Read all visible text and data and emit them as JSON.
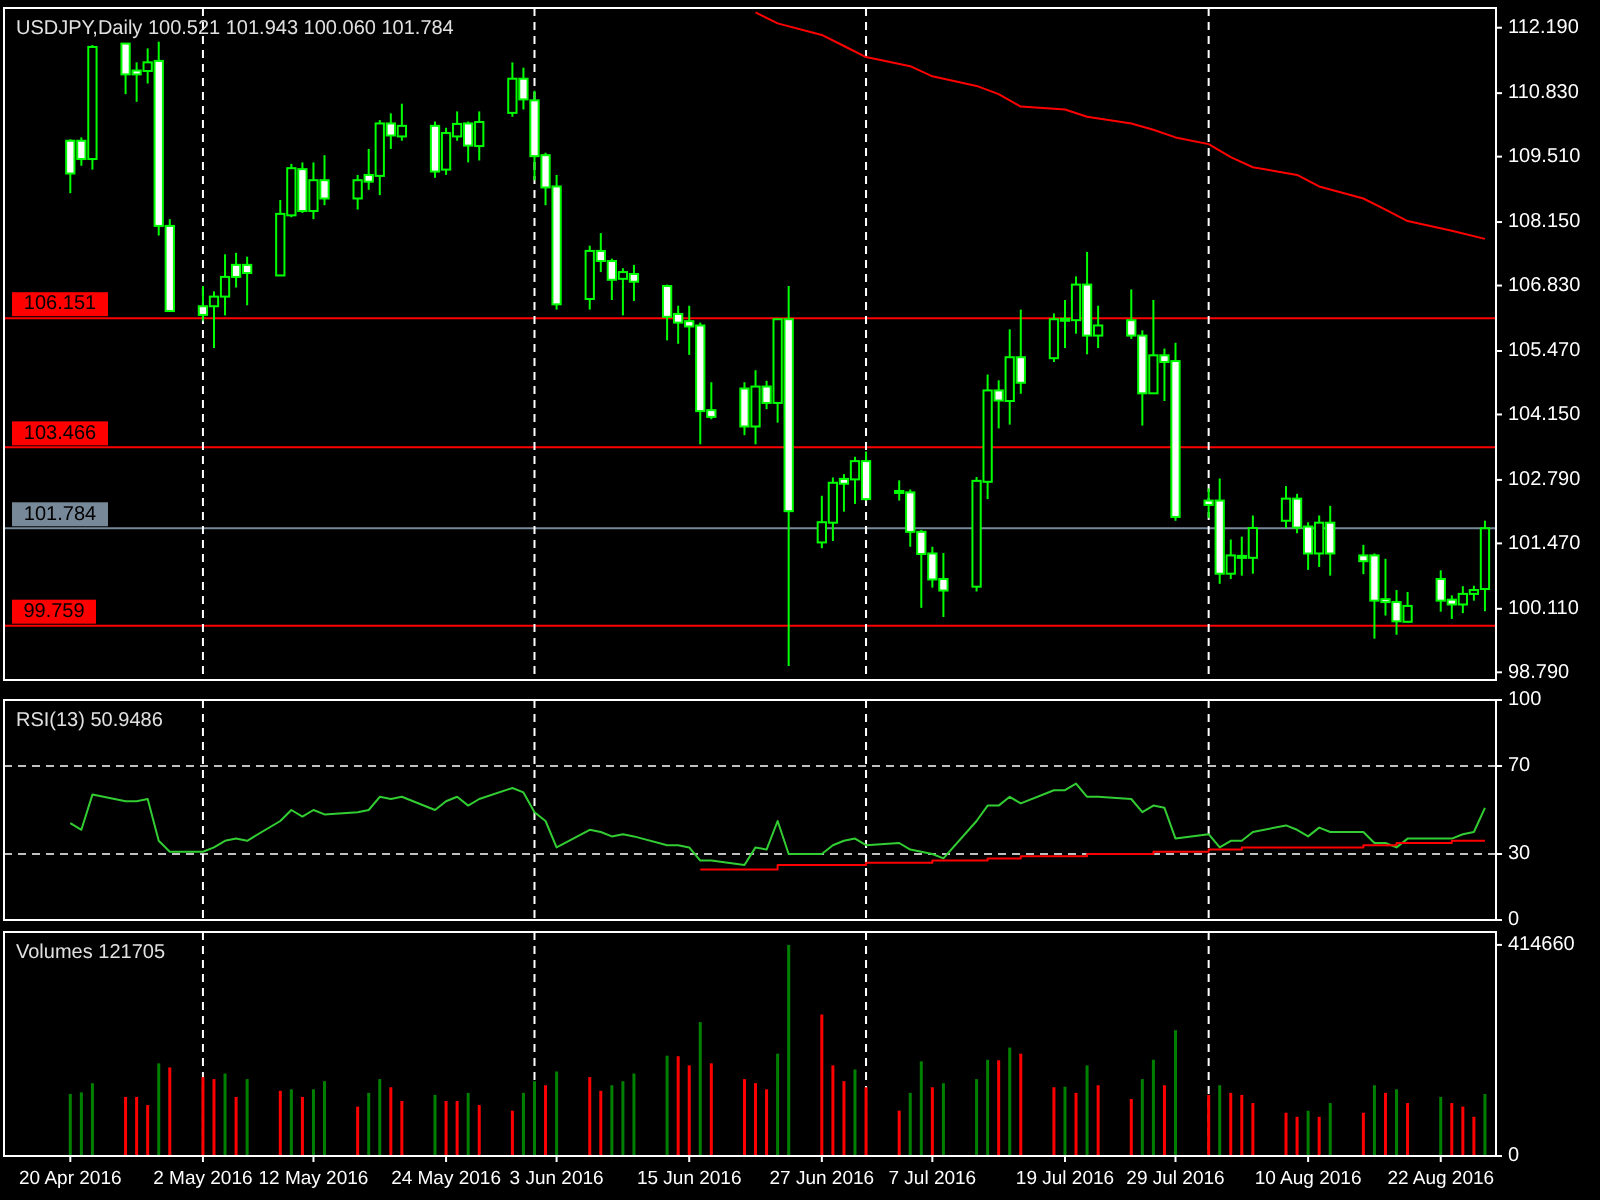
{
  "chart_data": [
    {
      "type": "candlestick",
      "title": "USDJPY,Daily 100.521 101.943 100.060 101.784",
      "color": "#00ff00",
      "x": [
        "2016-04-20",
        "2016-04-21",
        "2016-04-22",
        "2016-04-25",
        "2016-04-26",
        "2016-04-27",
        "2016-04-28",
        "2016-04-29",
        "2016-05-02",
        "2016-05-03",
        "2016-05-04",
        "2016-05-05",
        "2016-05-06",
        "2016-05-09",
        "2016-05-10",
        "2016-05-11",
        "2016-05-12",
        "2016-05-13",
        "2016-05-16",
        "2016-05-17",
        "2016-05-18",
        "2016-05-19",
        "2016-05-20",
        "2016-05-23",
        "2016-05-24",
        "2016-05-25",
        "2016-05-26",
        "2016-05-27",
        "2016-05-30",
        "2016-05-31",
        "2016-06-01",
        "2016-06-02",
        "2016-06-03",
        "2016-06-06",
        "2016-06-07",
        "2016-06-08",
        "2016-06-09",
        "2016-06-10",
        "2016-06-13",
        "2016-06-14",
        "2016-06-15",
        "2016-06-16",
        "2016-06-17",
        "2016-06-20",
        "2016-06-21",
        "2016-06-22",
        "2016-06-23",
        "2016-06-24",
        "2016-06-27",
        "2016-06-28",
        "2016-06-29",
        "2016-06-30",
        "2016-07-01",
        "2016-07-04",
        "2016-07-05",
        "2016-07-06",
        "2016-07-07",
        "2016-07-08",
        "2016-07-11",
        "2016-07-12",
        "2016-07-13",
        "2016-07-14",
        "2016-07-15",
        "2016-07-18",
        "2016-07-19",
        "2016-07-20",
        "2016-07-21",
        "2016-07-22",
        "2016-07-25",
        "2016-07-26",
        "2016-07-27",
        "2016-07-28",
        "2016-07-29",
        "2016-08-01",
        "2016-08-02",
        "2016-08-03",
        "2016-08-04",
        "2016-08-05",
        "2016-08-08",
        "2016-08-09",
        "2016-08-10",
        "2016-08-11",
        "2016-08-12",
        "2016-08-15",
        "2016-08-16",
        "2016-08-17",
        "2016-08-18",
        "2016-08-19",
        "2016-08-22",
        "2016-08-23",
        "2016-08-24",
        "2016-08-25",
        "2016-08-26"
      ],
      "ohlc": [
        [
          109.84,
          109.87,
          108.75,
          109.16
        ],
        [
          109.84,
          109.91,
          109.32,
          109.46
        ],
        [
          109.46,
          111.83,
          109.24,
          111.79
        ],
        [
          111.86,
          111.87,
          110.81,
          111.22
        ],
        [
          111.3,
          111.47,
          110.65,
          111.22
        ],
        [
          111.29,
          111.76,
          111.03,
          111.47
        ],
        [
          111.5,
          111.9,
          107.87,
          108.07
        ],
        [
          108.07,
          108.21,
          106.28,
          106.3
        ],
        [
          106.4,
          106.82,
          106.1,
          106.22
        ],
        [
          106.4,
          106.71,
          105.53,
          106.6
        ],
        [
          106.6,
          107.48,
          106.21,
          107.01
        ],
        [
          107.26,
          107.51,
          106.79,
          107.01
        ],
        [
          107.26,
          107.43,
          106.42,
          107.09
        ],
        [
          107.04,
          108.61,
          107.04,
          108.32
        ],
        [
          108.29,
          109.36,
          108.25,
          109.27
        ],
        [
          109.25,
          109.39,
          108.34,
          108.38
        ],
        [
          108.38,
          109.39,
          108.21,
          109.02
        ],
        [
          109.02,
          109.54,
          108.5,
          108.64
        ],
        [
          108.64,
          109.13,
          108.41,
          109.02
        ],
        [
          109.13,
          109.67,
          108.82,
          108.99
        ],
        [
          109.11,
          110.27,
          108.71,
          110.2
        ],
        [
          110.2,
          110.41,
          109.67,
          109.95
        ],
        [
          109.93,
          110.61,
          109.84,
          110.15
        ],
        [
          110.15,
          110.24,
          109.07,
          109.2
        ],
        [
          109.24,
          110.11,
          109.13,
          110.0
        ],
        [
          109.93,
          110.45,
          109.84,
          110.19
        ],
        [
          110.2,
          110.24,
          109.39,
          109.74
        ],
        [
          109.73,
          110.45,
          109.43,
          110.23
        ],
        [
          110.42,
          111.47,
          110.34,
          111.13
        ],
        [
          111.13,
          111.36,
          110.49,
          110.7
        ],
        [
          110.68,
          110.88,
          109.02,
          109.52
        ],
        [
          109.54,
          109.59,
          108.5,
          108.87
        ],
        [
          108.89,
          109.13,
          106.33,
          106.44
        ],
        [
          106.55,
          107.66,
          106.33,
          107.55
        ],
        [
          107.55,
          107.92,
          107.11,
          107.34
        ],
        [
          107.34,
          107.39,
          106.53,
          106.95
        ],
        [
          106.97,
          107.19,
          106.21,
          107.11
        ],
        [
          107.07,
          107.26,
          106.51,
          106.91
        ],
        [
          106.82,
          106.85,
          105.69,
          106.18
        ],
        [
          106.24,
          106.41,
          105.62,
          106.06
        ],
        [
          106.09,
          106.41,
          105.39,
          105.98
        ],
        [
          106.0,
          106.06,
          103.53,
          104.22
        ],
        [
          104.24,
          104.82,
          104.05,
          104.1
        ],
        [
          104.69,
          104.82,
          103.72,
          103.9
        ],
        [
          103.9,
          105.07,
          103.53,
          104.73
        ],
        [
          104.73,
          104.85,
          104.26,
          104.39
        ],
        [
          104.39,
          106.13,
          103.98,
          106.13
        ],
        [
          106.13,
          106.82,
          98.92,
          102.14
        ],
        [
          101.49,
          102.46,
          101.37,
          101.91
        ],
        [
          101.9,
          102.84,
          101.52,
          102.73
        ],
        [
          102.81,
          102.91,
          102.13,
          102.71
        ],
        [
          102.8,
          103.27,
          102.29,
          103.18
        ],
        [
          103.18,
          103.38,
          102.36,
          102.39
        ],
        [
          102.55,
          102.78,
          102.36,
          102.56
        ],
        [
          102.53,
          102.59,
          101.4,
          101.71
        ],
        [
          101.71,
          101.75,
          100.13,
          101.25
        ],
        [
          101.26,
          101.4,
          100.55,
          100.72
        ],
        [
          100.73,
          101.27,
          99.94,
          100.49
        ],
        [
          100.57,
          102.85,
          100.47,
          102.77
        ],
        [
          102.75,
          104.98,
          102.39,
          104.65
        ],
        [
          104.65,
          104.86,
          103.86,
          104.44
        ],
        [
          104.43,
          105.92,
          103.94,
          105.34
        ],
        [
          105.34,
          106.33,
          104.58,
          104.81
        ],
        [
          105.32,
          106.25,
          105.24,
          106.13
        ],
        [
          106.13,
          106.53,
          105.53,
          106.14
        ],
        [
          106.11,
          107.02,
          105.83,
          106.85
        ],
        [
          106.85,
          107.53,
          105.4,
          105.79
        ],
        [
          105.79,
          106.41,
          105.53,
          106.0
        ],
        [
          106.11,
          106.75,
          105.72,
          105.79
        ],
        [
          105.79,
          105.9,
          103.92,
          104.59
        ],
        [
          104.59,
          106.53,
          104.59,
          105.38
        ],
        [
          105.38,
          105.52,
          104.43,
          105.24
        ],
        [
          105.26,
          105.64,
          101.94,
          102.02
        ],
        [
          102.36,
          102.61,
          102.0,
          102.27
        ],
        [
          102.36,
          102.82,
          100.63,
          100.84
        ],
        [
          100.84,
          101.55,
          100.73,
          101.22
        ],
        [
          101.17,
          101.61,
          100.8,
          101.21
        ],
        [
          101.17,
          102.05,
          100.84,
          101.79
        ],
        [
          101.94,
          102.66,
          101.79,
          102.4
        ],
        [
          102.4,
          102.5,
          101.68,
          101.8
        ],
        [
          101.82,
          101.91,
          100.92,
          101.26
        ],
        [
          101.26,
          102.05,
          100.98,
          101.9
        ],
        [
          101.9,
          102.25,
          100.8,
          101.26
        ],
        [
          101.22,
          101.44,
          100.83,
          101.1
        ],
        [
          101.22,
          101.26,
          99.49,
          100.28
        ],
        [
          100.31,
          101.15,
          99.97,
          100.25
        ],
        [
          100.25,
          100.5,
          99.57,
          99.85
        ],
        [
          99.84,
          100.46,
          99.84,
          100.17
        ],
        [
          100.73,
          100.91,
          100.05,
          100.28
        ],
        [
          100.3,
          100.39,
          99.9,
          100.2
        ],
        [
          100.2,
          100.58,
          100.02,
          100.42
        ],
        [
          100.42,
          100.59,
          100.28,
          100.5
        ],
        [
          100.521,
          101.943,
          100.06,
          101.784
        ]
      ],
      "series": [
        {
          "type": "line",
          "color": "#ff0000",
          "x": [
            "2016-06-21",
            "2016-06-23",
            "2016-06-27",
            "2016-06-29",
            "2016-07-01",
            "2016-07-05",
            "2016-07-07",
            "2016-07-11",
            "2016-07-13",
            "2016-07-15",
            "2016-07-19",
            "2016-07-21",
            "2016-07-25",
            "2016-07-27",
            "2016-07-29",
            "2016-08-01",
            "2016-08-03",
            "2016-08-05",
            "2016-08-09",
            "2016-08-11",
            "2016-08-15",
            "2016-08-17",
            "2016-08-19",
            "2016-08-23",
            "2016-08-26"
          ],
          "values": [
            112.51,
            112.28,
            112.04,
            111.81,
            111.58,
            111.39,
            111.18,
            110.98,
            110.81,
            110.55,
            110.49,
            110.34,
            110.2,
            110.07,
            109.91,
            109.77,
            109.5,
            109.29,
            109.13,
            108.89,
            108.64,
            108.41,
            108.17,
            107.97,
            107.8
          ]
        }
      ],
      "xlim": [
        "2016-04-14",
        "2016-08-27"
      ],
      "ylim": [
        98.63,
        112.6
      ],
      "yticks": [
        {
          "value": 112.19,
          "label": "112.190"
        },
        {
          "value": 110.83,
          "label": "110.830"
        },
        {
          "value": 109.51,
          "label": "109.510"
        },
        {
          "value": 108.15,
          "label": "108.150"
        },
        {
          "value": 106.83,
          "label": "106.830"
        },
        {
          "value": 105.47,
          "label": "105.470"
        },
        {
          "value": 104.15,
          "label": "104.150"
        },
        {
          "value": 102.79,
          "label": "102.790"
        },
        {
          "value": 101.47,
          "label": "101.470"
        },
        {
          "value": 100.11,
          "label": "100.110"
        },
        {
          "value": 98.79,
          "label": "98.790"
        }
      ],
      "ref_lines": [
        {
          "axis": "y",
          "value": 106.151,
          "label": "106.151",
          "color": "#ff0000"
        },
        {
          "axis": "y",
          "value": 103.466,
          "label": "103.466",
          "color": "#ff0000"
        },
        {
          "axis": "y",
          "value": 99.759,
          "label": "99.759",
          "color": "#ff0000"
        },
        {
          "axis": "y",
          "value": 101.784,
          "label": "101.784",
          "color": "#778899"
        },
        {
          "axis": "x",
          "value": "2016-05-02",
          "color": "#ffffff",
          "line_style": "dashed"
        },
        {
          "axis": "x",
          "value": "2016-06-01",
          "color": "#ffffff",
          "line_style": "dashed"
        },
        {
          "axis": "x",
          "value": "2016-07-01",
          "color": "#ffffff",
          "line_style": "dashed"
        },
        {
          "axis": "x",
          "value": "2016-08-01",
          "color": "#ffffff",
          "line_style": "dashed"
        }
      ],
      "tick_labels": "y"
    },
    {
      "type": "line",
      "title": "RSI(13) 50.9486",
      "x": [
        "2016-04-20",
        "2016-04-21",
        "2016-04-22",
        "2016-04-25",
        "2016-04-26",
        "2016-04-27",
        "2016-04-28",
        "2016-04-29",
        "2016-05-02",
        "2016-05-03",
        "2016-05-04",
        "2016-05-05",
        "2016-05-06",
        "2016-05-09",
        "2016-05-10",
        "2016-05-11",
        "2016-05-12",
        "2016-05-13",
        "2016-05-16",
        "2016-05-17",
        "2016-05-18",
        "2016-05-19",
        "2016-05-20",
        "2016-05-23",
        "2016-05-24",
        "2016-05-25",
        "2016-05-26",
        "2016-05-27",
        "2016-05-30",
        "2016-05-31",
        "2016-06-01",
        "2016-06-02",
        "2016-06-03",
        "2016-06-06",
        "2016-06-07",
        "2016-06-08",
        "2016-06-09",
        "2016-06-10",
        "2016-06-13",
        "2016-06-14",
        "2016-06-15",
        "2016-06-16",
        "2016-06-17",
        "2016-06-20",
        "2016-06-21",
        "2016-06-22",
        "2016-06-23",
        "2016-06-24",
        "2016-06-27",
        "2016-06-28",
        "2016-06-29",
        "2016-06-30",
        "2016-07-01",
        "2016-07-04",
        "2016-07-05",
        "2016-07-06",
        "2016-07-07",
        "2016-07-08",
        "2016-07-11",
        "2016-07-12",
        "2016-07-13",
        "2016-07-14",
        "2016-07-15",
        "2016-07-18",
        "2016-07-19",
        "2016-07-20",
        "2016-07-21",
        "2016-07-22",
        "2016-07-25",
        "2016-07-26",
        "2016-07-27",
        "2016-07-28",
        "2016-07-29",
        "2016-08-01",
        "2016-08-02",
        "2016-08-03",
        "2016-08-04",
        "2016-08-05",
        "2016-08-08",
        "2016-08-09",
        "2016-08-10",
        "2016-08-11",
        "2016-08-12",
        "2016-08-15",
        "2016-08-16",
        "2016-08-17",
        "2016-08-18",
        "2016-08-19",
        "2016-08-22",
        "2016-08-23",
        "2016-08-24",
        "2016-08-25",
        "2016-08-26"
      ],
      "series": [
        {
          "color": "#32cd32",
          "values": [
            44,
            41,
            57,
            54,
            54,
            55,
            36,
            31,
            31,
            33,
            36,
            37,
            36,
            45,
            50,
            47,
            50,
            48,
            49,
            50,
            56,
            55,
            56,
            50,
            54,
            56,
            52,
            55,
            60,
            58,
            49,
            45,
            33,
            41,
            40,
            38,
            39,
            38,
            34,
            34,
            33,
            27,
            27,
            25,
            33,
            32,
            45,
            30,
            30,
            34,
            36,
            37,
            34,
            35,
            32,
            31,
            30,
            28,
            45,
            52,
            52,
            56,
            53,
            59,
            59,
            62,
            56,
            56,
            55,
            49,
            52,
            51,
            37,
            39,
            33,
            36,
            36,
            40,
            43,
            41,
            38,
            42,
            40,
            40,
            35,
            35,
            33,
            37,
            37,
            37,
            39,
            40,
            51
          ]
        },
        {
          "type": "step",
          "color": "#ff0000",
          "x": [
            "2016-06-16",
            "2016-06-23",
            "2016-06-30",
            "2016-07-01",
            "2016-07-06",
            "2016-07-07",
            "2016-07-12",
            "2016-07-15",
            "2016-07-21",
            "2016-07-27",
            "2016-08-01",
            "2016-08-04",
            "2016-08-10",
            "2016-08-15",
            "2016-08-18",
            "2016-08-23",
            "2016-08-26"
          ],
          "values": [
            23,
            25,
            25,
            26,
            26,
            27,
            28,
            29,
            30,
            31,
            32,
            33,
            33,
            34,
            35,
            36,
            36
          ]
        }
      ],
      "xlim": [
        "2016-04-14",
        "2016-08-27"
      ],
      "ylim": [
        0,
        100
      ],
      "yticks": [
        0,
        30,
        70,
        100
      ],
      "ref_lines": [
        {
          "axis": "y",
          "value": 70,
          "color": "#c0c0c0",
          "line_style": "dashed"
        },
        {
          "axis": "y",
          "value": 30,
          "color": "#c0c0c0",
          "line_style": "dashed"
        },
        {
          "axis": "x",
          "value": "2016-05-02",
          "color": "#ffffff",
          "line_style": "dashed"
        },
        {
          "axis": "x",
          "value": "2016-06-01",
          "color": "#ffffff",
          "line_style": "dashed"
        },
        {
          "axis": "x",
          "value": "2016-07-01",
          "color": "#ffffff",
          "line_style": "dashed"
        },
        {
          "axis": "x",
          "value": "2016-08-01",
          "color": "#ffffff",
          "line_style": "dashed"
        }
      ],
      "tick_labels": "y"
    },
    {
      "type": "bar",
      "title": "Volumes 121705",
      "x": [
        "2016-04-20",
        "2016-04-21",
        "2016-04-22",
        "2016-04-25",
        "2016-04-26",
        "2016-04-27",
        "2016-04-28",
        "2016-04-29",
        "2016-05-02",
        "2016-05-03",
        "2016-05-04",
        "2016-05-05",
        "2016-05-06",
        "2016-05-09",
        "2016-05-10",
        "2016-05-11",
        "2016-05-12",
        "2016-05-13",
        "2016-05-16",
        "2016-05-17",
        "2016-05-18",
        "2016-05-19",
        "2016-05-20",
        "2016-05-23",
        "2016-05-24",
        "2016-05-25",
        "2016-05-26",
        "2016-05-27",
        "2016-05-30",
        "2016-05-31",
        "2016-06-01",
        "2016-06-02",
        "2016-06-03",
        "2016-06-06",
        "2016-06-07",
        "2016-06-08",
        "2016-06-09",
        "2016-06-10",
        "2016-06-13",
        "2016-06-14",
        "2016-06-15",
        "2016-06-16",
        "2016-06-17",
        "2016-06-20",
        "2016-06-21",
        "2016-06-22",
        "2016-06-23",
        "2016-06-24",
        "2016-06-27",
        "2016-06-28",
        "2016-06-29",
        "2016-06-30",
        "2016-07-01",
        "2016-07-04",
        "2016-07-05",
        "2016-07-06",
        "2016-07-07",
        "2016-07-08",
        "2016-07-11",
        "2016-07-12",
        "2016-07-13",
        "2016-07-14",
        "2016-07-15",
        "2016-07-18",
        "2016-07-19",
        "2016-07-20",
        "2016-07-21",
        "2016-07-22",
        "2016-07-25",
        "2016-07-26",
        "2016-07-27",
        "2016-07-28",
        "2016-07-29",
        "2016-08-01",
        "2016-08-02",
        "2016-08-03",
        "2016-08-04",
        "2016-08-05",
        "2016-08-08",
        "2016-08-09",
        "2016-08-10",
        "2016-08-11",
        "2016-08-12",
        "2016-08-15",
        "2016-08-16",
        "2016-08-17",
        "2016-08-18",
        "2016-08-19",
        "2016-08-22",
        "2016-08-23",
        "2016-08-24",
        "2016-08-25",
        "2016-08-26"
      ],
      "values": [
        122000,
        125000,
        143000,
        116000,
        116000,
        100000,
        182000,
        174000,
        155000,
        151000,
        162000,
        116000,
        151000,
        128000,
        131000,
        116000,
        131000,
        147000,
        97000,
        124000,
        151000,
        135000,
        108000,
        120000,
        108000,
        108000,
        124000,
        100000,
        89000,
        124000,
        147000,
        139000,
        166000,
        155000,
        128000,
        139000,
        147000,
        162000,
        197000,
        196000,
        178000,
        263000,
        182000,
        151000,
        143000,
        131000,
        201000,
        414660,
        278000,
        178000,
        147000,
        170000,
        135000,
        89000,
        124000,
        186000,
        135000,
        143000,
        151000,
        189000,
        188000,
        213000,
        201000,
        135000,
        136000,
        124000,
        178000,
        139000,
        112000,
        151000,
        189000,
        139000,
        247000,
        120000,
        139000,
        124000,
        120000,
        104000,
        85000,
        77000,
        89000,
        77000,
        104000,
        85000,
        139000,
        124000,
        131000,
        104000,
        116000,
        104000,
        97000,
        77000,
        121705
      ],
      "colors": [
        "#008000",
        "#008000",
        "#008000",
        "#ff0000",
        "#ff0000",
        "#ff0000",
        "#008000",
        "#ff0000",
        "#ff0000",
        "#ff0000",
        "#008000",
        "#ff0000",
        "#008000",
        "#ff0000",
        "#008000",
        "#ff0000",
        "#008000",
        "#008000",
        "#ff0000",
        "#008000",
        "#008000",
        "#ff0000",
        "#ff0000",
        "#008000",
        "#ff0000",
        "#ff0000",
        "#008000",
        "#ff0000",
        "#ff0000",
        "#008000",
        "#008000",
        "#ff0000",
        "#008000",
        "#ff0000",
        "#ff0000",
        "#008000",
        "#008000",
        "#008000",
        "#008000",
        "#ff0000",
        "#ff0000",
        "#008000",
        "#ff0000",
        "#ff0000",
        "#ff0000",
        "#ff0000",
        "#008000",
        "#008000",
        "#ff0000",
        "#ff0000",
        "#ff0000",
        "#008000",
        "#ff0000",
        "#ff0000",
        "#008000",
        "#008000",
        "#ff0000",
        "#008000",
        "#008000",
        "#008000",
        "#ff0000",
        "#008000",
        "#ff0000",
        "#ff0000",
        "#008000",
        "#ff0000",
        "#008000",
        "#ff0000",
        "#ff0000",
        "#008000",
        "#008000",
        "#ff0000",
        "#008000",
        "#ff0000",
        "#008000",
        "#ff0000",
        "#ff0000",
        "#ff0000",
        "#ff0000",
        "#ff0000",
        "#008000",
        "#ff0000",
        "#008000",
        "#ff0000",
        "#008000",
        "#ff0000",
        "#008000",
        "#ff0000",
        "#008000",
        "#ff0000",
        "#ff0000",
        "#ff0000",
        "#008000"
      ],
      "xlim": [
        "2016-04-14",
        "2016-08-27"
      ],
      "ylim": [
        0,
        440000
      ],
      "yticks": [
        0,
        414660
      ],
      "xticks": [
        {
          "value": "2016-04-20",
          "label": "20 Apr 2016"
        },
        {
          "value": "2016-05-02",
          "label": "2 May 2016"
        },
        {
          "value": "2016-05-12",
          "label": "12 May 2016"
        },
        {
          "value": "2016-05-24",
          "label": "24 May 2016"
        },
        {
          "value": "2016-06-03",
          "label": "3 Jun 2016"
        },
        {
          "value": "2016-06-15",
          "label": "15 Jun 2016"
        },
        {
          "value": "2016-06-27",
          "label": "27 Jun 2016"
        },
        {
          "value": "2016-07-07",
          "label": "7 Jul 2016"
        },
        {
          "value": "2016-07-19",
          "label": "19 Jul 2016"
        },
        {
          "value": "2016-07-29",
          "label": "29 Jul 2016"
        },
        {
          "value": "2016-08-10",
          "label": "10 Aug 2016"
        },
        {
          "value": "2016-08-22",
          "label": "22 Aug 2016"
        }
      ],
      "ref_lines": [
        {
          "axis": "x",
          "value": "2016-05-02",
          "color": "#ffffff",
          "line_style": "dashed"
        },
        {
          "axis": "x",
          "value": "2016-06-01",
          "color": "#ffffff",
          "line_style": "dashed"
        },
        {
          "axis": "x",
          "value": "2016-07-01",
          "color": "#ffffff",
          "line_style": "dashed"
        },
        {
          "axis": "x",
          "value": "2016-08-01",
          "color": "#ffffff",
          "line_style": "dashed"
        }
      ]
    }
  ]
}
